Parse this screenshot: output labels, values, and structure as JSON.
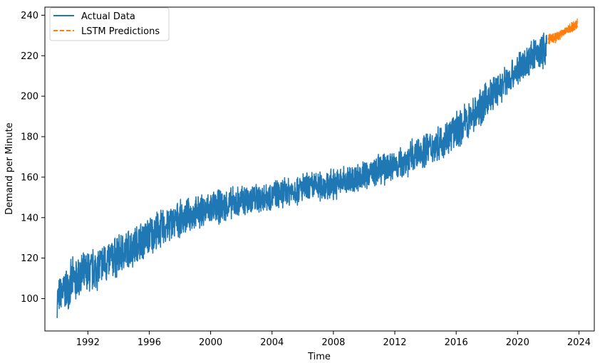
{
  "chart_data": {
    "type": "line",
    "title": "",
    "xlabel": "Time",
    "ylabel": "Demand per Minute",
    "xlim": [
      1989.2,
      2025.0
    ],
    "ylim": [
      84,
      244
    ],
    "grid": false,
    "legend_position": "top-left",
    "x_ticks": [
      1992,
      1996,
      2000,
      2004,
      2008,
      2012,
      2016,
      2020,
      2024
    ],
    "y_ticks": [
      100,
      120,
      140,
      160,
      180,
      200,
      220,
      240
    ],
    "x_tick_labels": [
      "1992",
      "1996",
      "2000",
      "2004",
      "2008",
      "2012",
      "2016",
      "2020",
      "2024"
    ],
    "y_tick_labels": [
      "100",
      "120",
      "140",
      "160",
      "180",
      "200",
      "220",
      "240"
    ],
    "colors": {
      "actual": "#1f77b4",
      "predicted": "#ff7f0e"
    },
    "series": [
      {
        "name": "Actual Data",
        "style": "solid",
        "x": [
          1990.0,
          1991.0,
          1992.0,
          1993.0,
          1994.0,
          1995.0,
          1996.0,
          1997.0,
          1998.0,
          1999.0,
          2000.0,
          2001.0,
          2002.0,
          2003.0,
          2004.0,
          2005.0,
          2006.0,
          2007.0,
          2008.0,
          2009.0,
          2010.0,
          2011.0,
          2012.0,
          2013.0,
          2014.0,
          2015.0,
          2016.0,
          2017.0,
          2018.0,
          2019.0,
          2020.0,
          2021.0,
          2021.9
        ],
        "upper": [
          110,
          121,
          125,
          129,
          133,
          137,
          142,
          146,
          149,
          151,
          154,
          155,
          157,
          158,
          159,
          161,
          163,
          164,
          165,
          167,
          169,
          172,
          175,
          179,
          183,
          187,
          193,
          200,
          208,
          215,
          222,
          229,
          234
        ],
        "lower": [
          90,
          96,
          100,
          105,
          110,
          115,
          120,
          125,
          130,
          133,
          135,
          137,
          139,
          141,
          143,
          145,
          146,
          147,
          148,
          150,
          153,
          155,
          157,
          160,
          164,
          168,
          173,
          180,
          188,
          196,
          204,
          210,
          214
        ]
      },
      {
        "name": "LSTM Predictions",
        "style": "dashed",
        "x": [
          2022.0,
          2022.5,
          2023.0,
          2023.5,
          2023.9
        ],
        "upper": [
          231,
          232,
          234,
          237,
          239
        ],
        "lower": [
          225,
          226,
          229,
          231,
          233
        ]
      }
    ]
  }
}
